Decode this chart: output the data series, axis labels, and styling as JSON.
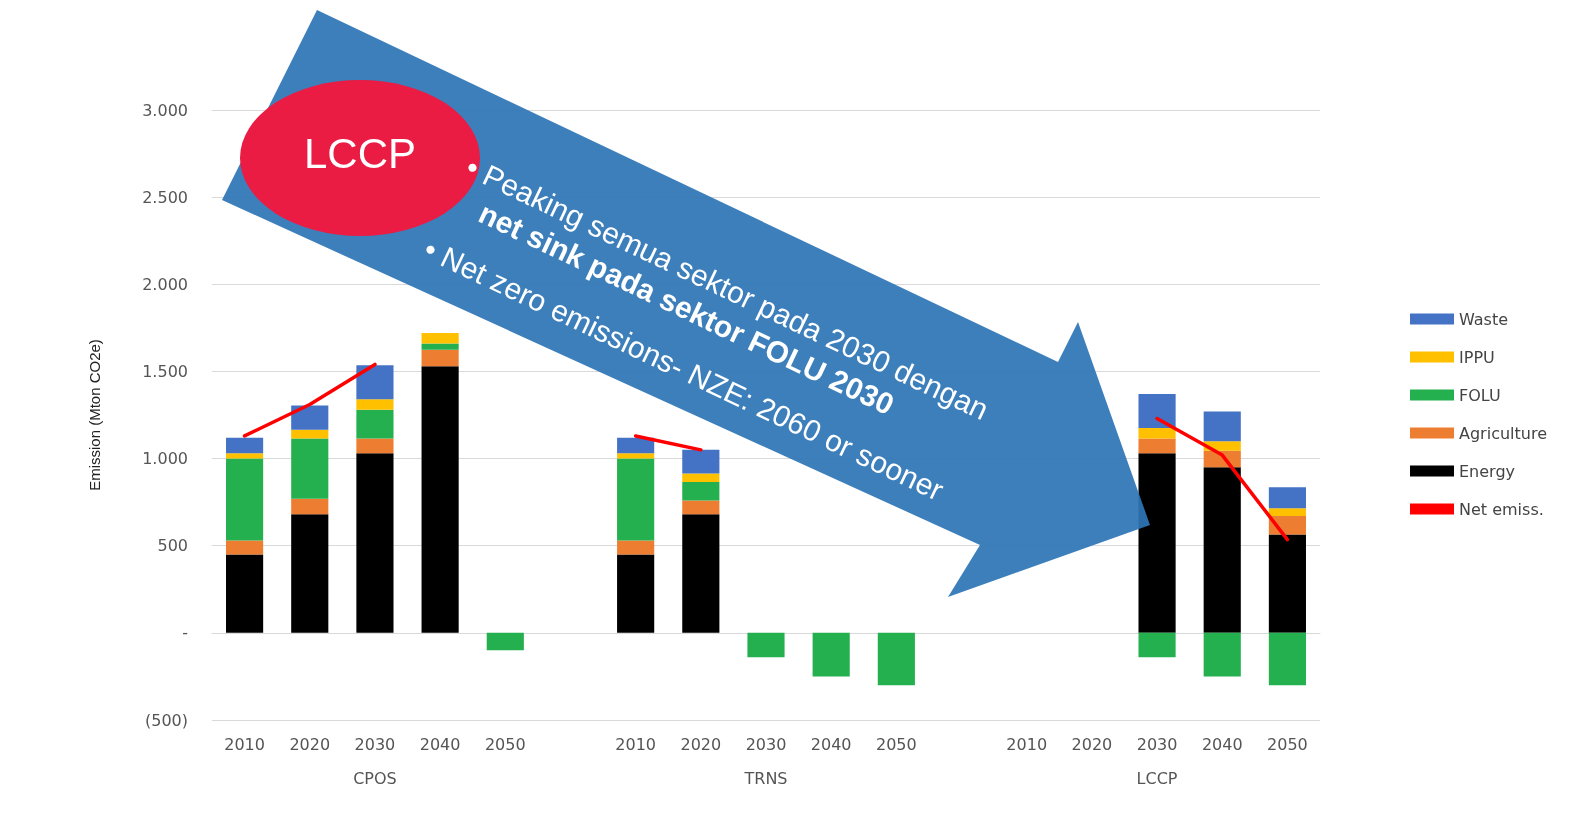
{
  "chart_data": {
    "type": "bar",
    "stacked": true,
    "ylabel": "Emission (Mton CO2e)",
    "categories": [
      "2010",
      "2020",
      "2030",
      "2040",
      "2050",
      null,
      "2010",
      "2020",
      "2030",
      "2040",
      "2050",
      null,
      "2010",
      "2020",
      "2030",
      "2040",
      "2050"
    ],
    "series": [
      {
        "name": "Energy",
        "color": "#000000",
        "values": [
          450,
          680,
          1030,
          1530,
          null,
          null,
          450,
          680,
          null,
          null,
          null,
          null,
          null,
          null,
          1030,
          950,
          565
        ]
      },
      {
        "name": "Agriculture",
        "color": "#ed7d31",
        "values": [
          80,
          90,
          85,
          95,
          null,
          null,
          80,
          80,
          null,
          null,
          null,
          null,
          null,
          null,
          85,
          95,
          105
        ]
      },
      {
        "name": "FOLU",
        "color": "#25b04f",
        "values": [
          470,
          345,
          165,
          35,
          -100,
          null,
          470,
          105,
          -140,
          -250,
          -300,
          null,
          null,
          null,
          -140,
          -250,
          -300
        ]
      },
      {
        "name": "IPPU",
        "color": "#ffc000",
        "values": [
          30,
          50,
          60,
          60,
          null,
          null,
          30,
          50,
          null,
          null,
          null,
          null,
          null,
          null,
          60,
          55,
          45
        ]
      },
      {
        "name": "Waste",
        "color": "#4472c4",
        "values": [
          90,
          140,
          195,
          null,
          null,
          null,
          90,
          135,
          null,
          null,
          null,
          null,
          null,
          null,
          195,
          170,
          120
        ]
      },
      {
        "name": "Net emiss.",
        "type": "line",
        "color": "#ff0000",
        "values": [
          1130,
          1310,
          1540,
          null,
          null,
          null,
          1130,
          1050,
          null,
          null,
          null,
          null,
          null,
          null,
          1230,
          1020,
          535
        ]
      }
    ],
    "ylim": [
      -500,
      3000
    ],
    "yticks": [
      {
        "value": -500,
        "label": "(500)"
      },
      {
        "value": 0,
        "label": "-"
      },
      {
        "value": 500,
        "label": "500"
      },
      {
        "value": 1000,
        "label": "1.000"
      },
      {
        "value": 1500,
        "label": "1.500"
      },
      {
        "value": 2000,
        "label": "2.000"
      },
      {
        "value": 2500,
        "label": "2.500"
      },
      {
        "value": 3000,
        "label": "3.000"
      }
    ],
    "grid": "y",
    "legend": "right",
    "marker": "none",
    "line_style": "solid",
    "annotations": [
      "CPOS",
      "TRNS",
      "LCCP",
      "LCCP",
      "• Peaking semua sektor pada 2030 dengan",
      "net sink pada sektor FOLU 2030",
      "• Net zero emissions- NZE: 2060 or sooner"
    ]
  }
}
